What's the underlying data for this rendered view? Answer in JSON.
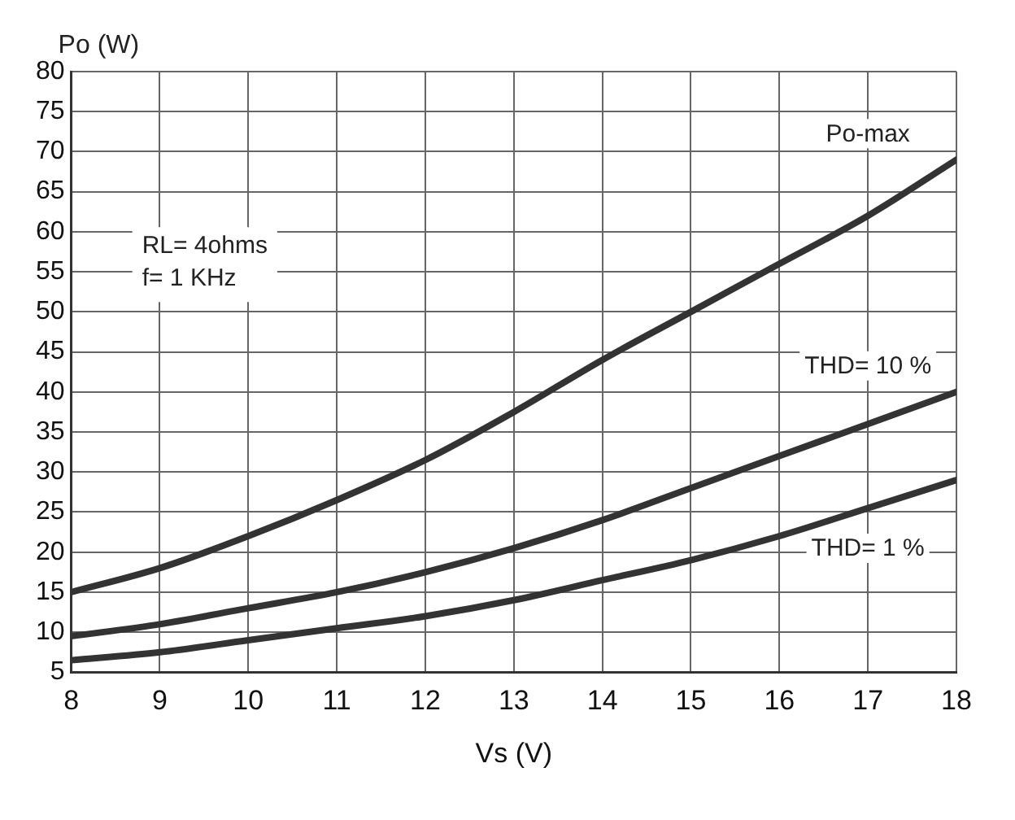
{
  "chart_data": {
    "type": "line",
    "xlabel": "Vs (V)",
    "ylabel": "Po (W)",
    "x": [
      8,
      9,
      10,
      11,
      12,
      13,
      14,
      15,
      16,
      17,
      18
    ],
    "series": [
      {
        "name": "Po-max",
        "color": "#333333",
        "values": [
          15,
          18,
          22,
          26.5,
          31.5,
          37.5,
          44,
          50,
          56,
          62,
          69
        ]
      },
      {
        "name": "THD= 10 %",
        "color": "#333333",
        "values": [
          9.5,
          11,
          13,
          15,
          17.5,
          20.5,
          24,
          28,
          32,
          36,
          40
        ]
      },
      {
        "name": "THD= 1 %",
        "color": "#333333",
        "values": [
          6.5,
          7.5,
          9,
          10.5,
          12,
          14,
          16.5,
          19,
          22,
          25.5,
          29
        ]
      }
    ],
    "xlim": [
      8,
      18
    ],
    "xticks": [
      8,
      9,
      10,
      11,
      12,
      13,
      14,
      15,
      16,
      17,
      18
    ],
    "ylim": [
      5,
      80
    ],
    "yticks": [
      5,
      10,
      15,
      20,
      25,
      30,
      35,
      40,
      45,
      50,
      55,
      60,
      65,
      70,
      75,
      80
    ],
    "grid": true,
    "legend": false,
    "marker": "none",
    "line_style": "solid",
    "annotations": [
      "RL= 4ohms",
      "f= 1 KHz"
    ]
  }
}
